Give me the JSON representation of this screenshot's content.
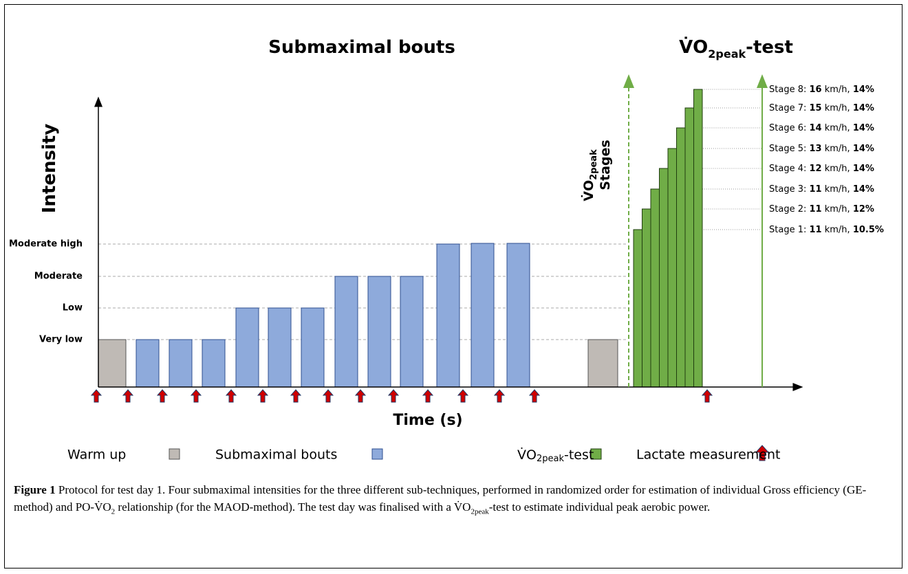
{
  "titles": {
    "submaximal": "Submaximal bouts",
    "vo2": {
      "symbol": "V̇O",
      "subscript": "2peak",
      "suffix": "-test"
    }
  },
  "y_axis": {
    "label": "Intensity",
    "levels": [
      "Very low",
      "Low",
      "Moderate",
      "Moderate high"
    ]
  },
  "x_axis": {
    "label": "Time (s)"
  },
  "stages_label": {
    "symbol": "V̇O",
    "subscript": "2peak",
    "word": "Stages"
  },
  "stages": [
    {
      "name": "Stage 8:",
      "speed": "16",
      "unit": "km/h,",
      "grade": "14%"
    },
    {
      "name": "Stage 7:",
      "speed": "15",
      "unit": "km/h,",
      "grade": "14%"
    },
    {
      "name": "Stage 6:",
      "speed": "14",
      "unit": "km/h,",
      "grade": "14%"
    },
    {
      "name": "Stage 5:",
      "speed": "13",
      "unit": "km/h,",
      "grade": "14%"
    },
    {
      "name": "Stage 4:",
      "speed": "12",
      "unit": "km/h,",
      "grade": "14%"
    },
    {
      "name": "Stage 3:",
      "speed": "11",
      "unit": "km/h,",
      "grade": "14%"
    },
    {
      "name": "Stage 2:",
      "speed": "11",
      "unit": "km/h,",
      "grade": "12%"
    },
    {
      "name": "Stage 1:",
      "speed": "11",
      "unit": "km/h,",
      "grade": "10.5%"
    }
  ],
  "legend": {
    "warm_up": "Warm up",
    "submaximal": "Submaximal bouts",
    "vo2": {
      "symbol": "V̇O",
      "subscript": "2peak",
      "suffix": "-test"
    },
    "lactate": "Lactate measurement"
  },
  "caption": {
    "label": "Figure 1",
    "text_1": "Protocol for test day 1. Four submaximal intensities for the three different sub-techniques, performed in randomized order for estimation of individual Gross efficiency (GE-method) and PO-V̇O",
    "sub_1": "2",
    "text_2": "relationship (for the MAOD-method). The test day was finalised with a V̇O",
    "sub_2": "2peak",
    "text_3": "-test to estimate individual peak aerobic power."
  }
}
